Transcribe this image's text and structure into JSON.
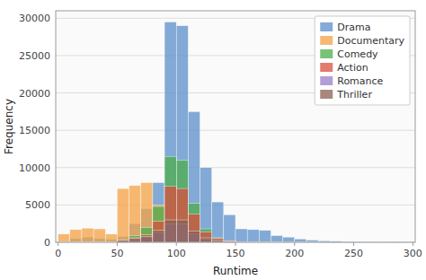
{
  "chart_data": {
    "type": "histogram",
    "xlabel": "Runtime",
    "ylabel": "Frequency",
    "bins": [
      0,
      10,
      20,
      30,
      40,
      50,
      60,
      70,
      80,
      90,
      100,
      110,
      120,
      130,
      140,
      150,
      160,
      170,
      180,
      190,
      200,
      210,
      220,
      230,
      240,
      250,
      260,
      270,
      280,
      290,
      300
    ],
    "series": [
      {
        "name": "Drama",
        "color": "#5b8fc9",
        "values": [
          100,
          500,
          700,
          500,
          400,
          800,
          2500,
          4500,
          8000,
          29500,
          29000,
          17500,
          10000,
          5400,
          3700,
          1800,
          1700,
          1600,
          900,
          700,
          450,
          300,
          200,
          150,
          100,
          80,
          50,
          40,
          20,
          10
        ]
      },
      {
        "name": "Documentary",
        "color": "#f4a143",
        "values": [
          1100,
          1700,
          1900,
          1800,
          1100,
          7200,
          7600,
          8000,
          5000,
          1200,
          800,
          500,
          300,
          150,
          80,
          50,
          40,
          30,
          20,
          15,
          10,
          8,
          5,
          3,
          2,
          1,
          0,
          0,
          0,
          0
        ]
      },
      {
        "name": "Comedy",
        "color": "#4cae4c",
        "values": [
          50,
          80,
          80,
          80,
          100,
          300,
          900,
          2000,
          4800,
          11500,
          11000,
          5200,
          1800,
          600,
          150,
          80,
          60,
          40,
          30,
          20,
          10,
          5,
          0,
          0,
          0,
          0,
          0,
          0,
          0,
          0
        ]
      },
      {
        "name": "Action",
        "color": "#d94f3d",
        "values": [
          30,
          40,
          40,
          40,
          60,
          200,
          600,
          1000,
          2800,
          7500,
          7200,
          3800,
          1400,
          500,
          200,
          100,
          60,
          50,
          30,
          20,
          10,
          5,
          0,
          0,
          0,
          0,
          0,
          0,
          0,
          0
        ]
      },
      {
        "name": "Romance",
        "color": "#9b7dc8",
        "values": [
          20,
          30,
          30,
          30,
          40,
          150,
          350,
          700,
          1400,
          2500,
          2500,
          1100,
          450,
          180,
          80,
          50,
          30,
          25,
          20,
          15,
          10,
          5,
          0,
          0,
          0,
          0,
          0,
          0,
          0,
          0
        ]
      },
      {
        "name": "Thriller",
        "color": "#8b6050",
        "values": [
          20,
          30,
          30,
          30,
          50,
          300,
          500,
          800,
          1600,
          3000,
          3000,
          1500,
          600,
          250,
          120,
          80,
          55,
          40,
          30,
          20,
          10,
          5,
          0,
          0,
          0,
          0,
          0,
          0,
          0,
          0
        ]
      }
    ],
    "xlim": [
      -2,
      302
    ],
    "xticks": [
      0,
      50,
      100,
      150,
      200,
      250,
      300
    ],
    "ylim": [
      0,
      31000
    ],
    "yticks": [
      0,
      5000,
      10000,
      15000,
      20000,
      25000,
      30000
    ],
    "grid": true,
    "legend": "upper right"
  }
}
